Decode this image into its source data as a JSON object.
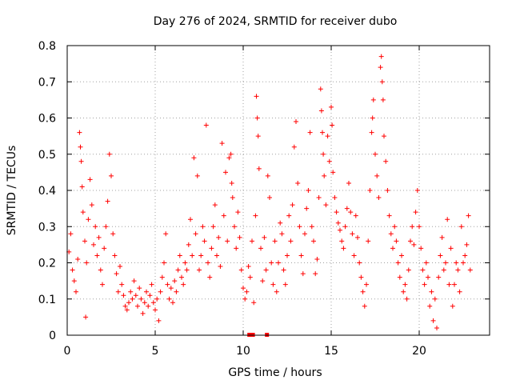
{
  "chart_data": {
    "type": "scatter",
    "title": "Day 276 of 2024, SRMTID for receiver dubo",
    "xlabel": "GPS time / hours",
    "ylabel": "SRMTID / TECUs",
    "xlim": [
      0,
      24
    ],
    "ylim": [
      0,
      0.8
    ],
    "xticks": [
      0,
      5,
      10,
      15,
      20
    ],
    "xtick_labels": [
      "0",
      "5",
      "10",
      "15",
      "20"
    ],
    "yticks": [
      0,
      0.1,
      0.2,
      0.3,
      0.4,
      0.5,
      0.6,
      0.7,
      0.8
    ],
    "ytick_labels": [
      "0",
      "0.1",
      "0.2",
      "0.3",
      "0.4",
      "0.5",
      "0.6",
      "0.7",
      "0.8"
    ],
    "grid": true,
    "marker": "plus",
    "color": "#ff0000",
    "series": [
      {
        "name": "SRMTID",
        "points": [
          [
            0.1,
            0.23
          ],
          [
            0.2,
            0.28
          ],
          [
            0.3,
            0.18
          ],
          [
            0.4,
            0.15
          ],
          [
            0.5,
            0.12
          ],
          [
            0.6,
            0.21
          ],
          [
            0.7,
            0.56
          ],
          [
            0.75,
            0.52
          ],
          [
            0.8,
            0.48
          ],
          [
            0.85,
            0.41
          ],
          [
            0.9,
            0.34
          ],
          [
            1.0,
            0.26
          ],
          [
            1.05,
            0.05
          ],
          [
            1.1,
            0.2
          ],
          [
            1.2,
            0.32
          ],
          [
            1.3,
            0.43
          ],
          [
            1.4,
            0.36
          ],
          [
            1.5,
            0.25
          ],
          [
            1.6,
            0.3
          ],
          [
            1.7,
            0.22
          ],
          [
            1.8,
            0.27
          ],
          [
            1.9,
            0.18
          ],
          [
            2.0,
            0.14
          ],
          [
            2.1,
            0.24
          ],
          [
            2.2,
            0.3
          ],
          [
            2.3,
            0.37
          ],
          [
            2.4,
            0.5
          ],
          [
            2.5,
            0.44
          ],
          [
            2.6,
            0.28
          ],
          [
            2.7,
            0.22
          ],
          [
            2.8,
            0.17
          ],
          [
            2.9,
            0.12
          ],
          [
            3.0,
            0.19
          ],
          [
            3.1,
            0.14
          ],
          [
            3.2,
            0.11
          ],
          [
            3.3,
            0.08
          ],
          [
            3.4,
            0.07
          ],
          [
            3.5,
            0.09
          ],
          [
            3.6,
            0.12
          ],
          [
            3.7,
            0.1
          ],
          [
            3.8,
            0.15
          ],
          [
            3.9,
            0.11
          ],
          [
            4.0,
            0.08
          ],
          [
            4.1,
            0.13
          ],
          [
            4.2,
            0.1
          ],
          [
            4.3,
            0.06
          ],
          [
            4.4,
            0.09
          ],
          [
            4.5,
            0.12
          ],
          [
            4.6,
            0.08
          ],
          [
            4.7,
            0.11
          ],
          [
            4.8,
            0.14
          ],
          [
            4.9,
            0.09
          ],
          [
            5.0,
            0.07
          ],
          [
            5.1,
            0.1
          ],
          [
            5.2,
            0.04
          ],
          [
            5.3,
            0.12
          ],
          [
            5.4,
            0.16
          ],
          [
            5.5,
            0.2
          ],
          [
            5.6,
            0.28
          ],
          [
            5.7,
            0.14
          ],
          [
            5.8,
            0.1
          ],
          [
            5.9,
            0.13
          ],
          [
            6.0,
            0.09
          ],
          [
            6.1,
            0.15
          ],
          [
            6.2,
            0.12
          ],
          [
            6.3,
            0.18
          ],
          [
            6.4,
            0.22
          ],
          [
            6.5,
            0.16
          ],
          [
            6.6,
            0.14
          ],
          [
            6.7,
            0.2
          ],
          [
            6.8,
            0.18
          ],
          [
            6.9,
            0.25
          ],
          [
            7.0,
            0.32
          ],
          [
            7.1,
            0.22
          ],
          [
            7.2,
            0.49
          ],
          [
            7.3,
            0.28
          ],
          [
            7.4,
            0.44
          ],
          [
            7.5,
            0.18
          ],
          [
            7.6,
            0.22
          ],
          [
            7.7,
            0.3
          ],
          [
            7.8,
            0.26
          ],
          [
            7.9,
            0.58
          ],
          [
            8.0,
            0.2
          ],
          [
            8.1,
            0.16
          ],
          [
            8.2,
            0.24
          ],
          [
            8.3,
            0.3
          ],
          [
            8.4,
            0.36
          ],
          [
            8.5,
            0.22
          ],
          [
            8.6,
            0.27
          ],
          [
            8.7,
            0.19
          ],
          [
            8.8,
            0.53
          ],
          [
            8.9,
            0.33
          ],
          [
            9.0,
            0.45
          ],
          [
            9.1,
            0.26
          ],
          [
            9.2,
            0.49
          ],
          [
            9.3,
            0.5
          ],
          [
            9.35,
            0.42
          ],
          [
            9.4,
            0.38
          ],
          [
            9.5,
            0.3
          ],
          [
            9.6,
            0.24
          ],
          [
            9.7,
            0.34
          ],
          [
            9.8,
            0.27
          ],
          [
            9.9,
            0.18
          ],
          [
            10.0,
            0.13
          ],
          [
            10.1,
            0.1
          ],
          [
            10.2,
            0.12
          ],
          [
            10.3,
            0.19
          ],
          [
            10.4,
            0.16
          ],
          [
            10.5,
            0.26
          ],
          [
            10.6,
            0.09
          ],
          [
            10.7,
            0.33
          ],
          [
            10.75,
            0.66
          ],
          [
            10.8,
            0.6
          ],
          [
            10.85,
            0.55
          ],
          [
            10.9,
            0.46
          ],
          [
            11.0,
            0.24
          ],
          [
            11.1,
            0.15
          ],
          [
            11.2,
            0.27
          ],
          [
            11.3,
            0.18
          ],
          [
            11.4,
            0.44
          ],
          [
            11.5,
            0.38
          ],
          [
            11.6,
            0.2
          ],
          [
            11.7,
            0.14
          ],
          [
            11.8,
            0.26
          ],
          [
            11.9,
            0.12
          ],
          [
            12.0,
            0.2
          ],
          [
            12.1,
            0.31
          ],
          [
            12.2,
            0.28
          ],
          [
            12.3,
            0.18
          ],
          [
            12.4,
            0.14
          ],
          [
            12.5,
            0.22
          ],
          [
            12.6,
            0.33
          ],
          [
            12.7,
            0.26
          ],
          [
            12.8,
            0.36
          ],
          [
            12.9,
            0.52
          ],
          [
            13.0,
            0.59
          ],
          [
            13.1,
            0.42
          ],
          [
            13.2,
            0.3
          ],
          [
            13.3,
            0.22
          ],
          [
            13.4,
            0.17
          ],
          [
            13.5,
            0.28
          ],
          [
            13.6,
            0.35
          ],
          [
            13.7,
            0.4
          ],
          [
            13.8,
            0.56
          ],
          [
            13.9,
            0.3
          ],
          [
            14.0,
            0.26
          ],
          [
            14.1,
            0.17
          ],
          [
            14.2,
            0.21
          ],
          [
            14.3,
            0.38
          ],
          [
            14.4,
            0.68
          ],
          [
            14.45,
            0.62
          ],
          [
            14.5,
            0.56
          ],
          [
            14.55,
            0.5
          ],
          [
            14.6,
            0.44
          ],
          [
            14.7,
            0.36
          ],
          [
            14.8,
            0.55
          ],
          [
            14.9,
            0.48
          ],
          [
            15.0,
            0.63
          ],
          [
            15.05,
            0.58
          ],
          [
            15.1,
            0.45
          ],
          [
            15.2,
            0.38
          ],
          [
            15.3,
            0.34
          ],
          [
            15.4,
            0.31
          ],
          [
            15.5,
            0.29
          ],
          [
            15.6,
            0.26
          ],
          [
            15.7,
            0.24
          ],
          [
            15.8,
            0.3
          ],
          [
            15.9,
            0.35
          ],
          [
            16.0,
            0.42
          ],
          [
            16.1,
            0.34
          ],
          [
            16.2,
            0.28
          ],
          [
            16.3,
            0.22
          ],
          [
            16.4,
            0.33
          ],
          [
            16.5,
            0.27
          ],
          [
            16.6,
            0.2
          ],
          [
            16.7,
            0.16
          ],
          [
            16.8,
            0.12
          ],
          [
            16.9,
            0.08
          ],
          [
            17.0,
            0.14
          ],
          [
            17.1,
            0.26
          ],
          [
            17.2,
            0.4
          ],
          [
            17.3,
            0.56
          ],
          [
            17.35,
            0.6
          ],
          [
            17.4,
            0.65
          ],
          [
            17.5,
            0.5
          ],
          [
            17.6,
            0.44
          ],
          [
            17.7,
            0.38
          ],
          [
            17.8,
            0.74
          ],
          [
            17.85,
            0.77
          ],
          [
            17.9,
            0.7
          ],
          [
            17.95,
            0.65
          ],
          [
            18.0,
            0.55
          ],
          [
            18.1,
            0.48
          ],
          [
            18.2,
            0.4
          ],
          [
            18.3,
            0.33
          ],
          [
            18.4,
            0.28
          ],
          [
            18.5,
            0.24
          ],
          [
            18.6,
            0.3
          ],
          [
            18.7,
            0.26
          ],
          [
            18.8,
            0.2
          ],
          [
            18.9,
            0.16
          ],
          [
            19.0,
            0.22
          ],
          [
            19.1,
            0.12
          ],
          [
            19.2,
            0.14
          ],
          [
            19.3,
            0.1
          ],
          [
            19.4,
            0.18
          ],
          [
            19.5,
            0.26
          ],
          [
            19.6,
            0.3
          ],
          [
            19.7,
            0.25
          ],
          [
            19.8,
            0.34
          ],
          [
            19.9,
            0.4
          ],
          [
            20.0,
            0.3
          ],
          [
            20.1,
            0.24
          ],
          [
            20.2,
            0.18
          ],
          [
            20.3,
            0.14
          ],
          [
            20.4,
            0.2
          ],
          [
            20.5,
            0.16
          ],
          [
            20.6,
            0.08
          ],
          [
            20.7,
            0.12
          ],
          [
            20.8,
            0.04
          ],
          [
            20.9,
            0.1
          ],
          [
            21.0,
            0.02
          ],
          [
            21.1,
            0.16
          ],
          [
            21.2,
            0.22
          ],
          [
            21.3,
            0.27
          ],
          [
            21.4,
            0.18
          ],
          [
            21.5,
            0.2
          ],
          [
            21.6,
            0.32
          ],
          [
            21.7,
            0.14
          ],
          [
            21.8,
            0.24
          ],
          [
            21.9,
            0.08
          ],
          [
            22.0,
            0.14
          ],
          [
            22.1,
            0.2
          ],
          [
            22.2,
            0.18
          ],
          [
            22.3,
            0.12
          ],
          [
            22.4,
            0.3
          ],
          [
            22.5,
            0.2
          ],
          [
            22.6,
            0.22
          ],
          [
            22.7,
            0.25
          ],
          [
            22.8,
            0.33
          ],
          [
            22.9,
            0.18
          ]
        ]
      }
    ],
    "gap_markers": [
      10.35,
      10.55,
      11.35
    ]
  }
}
